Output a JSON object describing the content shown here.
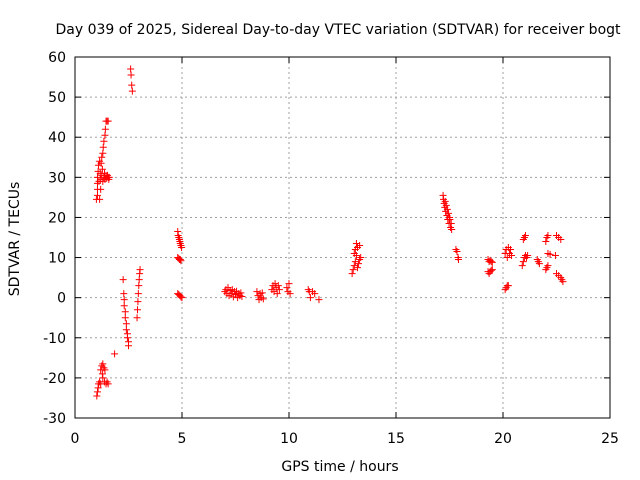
{
  "chart_data": {
    "type": "scatter",
    "title": "Day 039 of 2025, Sidereal Day-to-day VTEC variation (SDTVAR) for receiver bogt",
    "xlabel": "GPS time / hours",
    "ylabel": "SDTVAR / TECUs",
    "xlim": [
      0,
      25
    ],
    "ylim": [
      -30,
      60
    ],
    "xticks": [
      "0",
      "5",
      "10",
      "15",
      "20",
      "25"
    ],
    "yticks": [
      "-30",
      "-20",
      "-10",
      "0",
      "10",
      "20",
      "30",
      "40",
      "50",
      "60"
    ],
    "grid": true,
    "marker": "+",
    "series": [
      {
        "name": "SDTVAR",
        "color": "#ff0000",
        "points": [
          [
            1.0,
            24.5
          ],
          [
            1.05,
            25.5
          ],
          [
            1.05,
            27
          ],
          [
            1.05,
            28.5
          ],
          [
            1.05,
            30
          ],
          [
            1.08,
            31.5
          ],
          [
            1.1,
            33
          ],
          [
            1.12,
            29
          ],
          [
            1.15,
            24.5
          ],
          [
            1.15,
            34
          ],
          [
            1.18,
            31
          ],
          [
            1.2,
            27
          ],
          [
            1.2,
            29.5
          ],
          [
            1.22,
            33.5
          ],
          [
            1.25,
            35
          ],
          [
            1.25,
            30.5
          ],
          [
            1.28,
            32
          ],
          [
            1.3,
            36
          ],
          [
            1.3,
            29
          ],
          [
            1.32,
            37.5
          ],
          [
            1.35,
            30
          ],
          [
            1.35,
            39
          ],
          [
            1.38,
            31
          ],
          [
            1.4,
            40.5
          ],
          [
            1.4,
            29.5
          ],
          [
            1.42,
            42
          ],
          [
            1.45,
            30.5
          ],
          [
            1.45,
            44
          ],
          [
            1.48,
            29.8
          ],
          [
            1.5,
            44
          ],
          [
            1.52,
            30.5
          ],
          [
            1.55,
            30
          ],
          [
            1.55,
            44
          ],
          [
            1.58,
            29.5
          ],
          [
            1.6,
            30
          ],
          [
            1.02,
            -24.5
          ],
          [
            1.05,
            -23.5
          ],
          [
            1.08,
            -22.5
          ],
          [
            1.1,
            -21.5
          ],
          [
            1.15,
            -21
          ],
          [
            1.2,
            -21.5
          ],
          [
            1.2,
            -18
          ],
          [
            1.25,
            -17
          ],
          [
            1.28,
            -19
          ],
          [
            1.3,
            -16.5
          ],
          [
            1.3,
            -20
          ],
          [
            1.35,
            -17.5
          ],
          [
            1.38,
            -21
          ],
          [
            1.4,
            -18
          ],
          [
            1.45,
            -21.5
          ],
          [
            1.5,
            -21
          ],
          [
            1.55,
            -21.5
          ],
          [
            1.85,
            -14
          ],
          [
            2.6,
            57
          ],
          [
            2.62,
            55.5
          ],
          [
            2.65,
            53
          ],
          [
            2.68,
            51.5
          ],
          [
            2.25,
            4.5
          ],
          [
            2.28,
            1
          ],
          [
            2.3,
            -0.5
          ],
          [
            2.3,
            -2
          ],
          [
            2.35,
            -3.5
          ],
          [
            2.35,
            -5
          ],
          [
            2.4,
            -6.5
          ],
          [
            2.4,
            -8
          ],
          [
            2.45,
            -9
          ],
          [
            2.45,
            -10
          ],
          [
            2.5,
            -11
          ],
          [
            2.5,
            -12
          ],
          [
            2.9,
            -5
          ],
          [
            2.92,
            -3
          ],
          [
            2.94,
            -1
          ],
          [
            2.96,
            1
          ],
          [
            2.98,
            3
          ],
          [
            3.0,
            4.5
          ],
          [
            3.02,
            6
          ],
          [
            3.04,
            7
          ],
          [
            4.8,
            16.5
          ],
          [
            4.82,
            15.5
          ],
          [
            4.85,
            15
          ],
          [
            4.88,
            14.5
          ],
          [
            4.9,
            14
          ],
          [
            4.92,
            13.5
          ],
          [
            4.95,
            13
          ],
          [
            4.98,
            12.5
          ],
          [
            4.8,
            10
          ],
          [
            4.85,
            9.8
          ],
          [
            4.88,
            9.5
          ],
          [
            4.92,
            9.5
          ],
          [
            4.95,
            9.2
          ],
          [
            4.8,
            1
          ],
          [
            4.85,
            0.8
          ],
          [
            4.9,
            0.5
          ],
          [
            4.95,
            0.2
          ],
          [
            5.0,
            0
          ],
          [
            7.0,
            1.5
          ],
          [
            7.05,
            2
          ],
          [
            7.1,
            1
          ],
          [
            7.15,
            2.5
          ],
          [
            7.2,
            0.5
          ],
          [
            7.25,
            1.8
          ],
          [
            7.3,
            1
          ],
          [
            7.35,
            2
          ],
          [
            7.4,
            0.2
          ],
          [
            7.45,
            1.5
          ],
          [
            7.5,
            0.8
          ],
          [
            7.55,
            1.6
          ],
          [
            7.6,
            0
          ],
          [
            7.65,
            1
          ],
          [
            7.7,
            0.5
          ],
          [
            7.75,
            1.2
          ],
          [
            7.8,
            0.3
          ],
          [
            8.5,
            1.5
          ],
          [
            8.55,
            0.5
          ],
          [
            8.6,
            -0.5
          ],
          [
            8.65,
            1
          ],
          [
            8.7,
            0
          ],
          [
            8.75,
            1.2
          ],
          [
            8.8,
            -0.3
          ],
          [
            9.2,
            2
          ],
          [
            9.25,
            3
          ],
          [
            9.3,
            1.5
          ],
          [
            9.35,
            3.5
          ],
          [
            9.4,
            2.5
          ],
          [
            9.45,
            1
          ],
          [
            9.5,
            3
          ],
          [
            9.55,
            2
          ],
          [
            9.9,
            2.5
          ],
          [
            9.95,
            1.5
          ],
          [
            10.0,
            3.5
          ],
          [
            10.05,
            1
          ],
          [
            10.9,
            2
          ],
          [
            10.95,
            1.5
          ],
          [
            11.0,
            0
          ],
          [
            11.1,
            1.5
          ],
          [
            11.2,
            1
          ],
          [
            11.4,
            -0.5
          ],
          [
            12.95,
            6
          ],
          [
            13.0,
            7
          ],
          [
            13.05,
            8
          ],
          [
            13.05,
            11
          ],
          [
            13.1,
            9
          ],
          [
            13.1,
            12
          ],
          [
            13.15,
            10.5
          ],
          [
            13.15,
            13.5
          ],
          [
            13.2,
            7.5
          ],
          [
            13.2,
            12.5
          ],
          [
            13.25,
            8.5
          ],
          [
            13.3,
            9.5
          ],
          [
            13.3,
            13
          ],
          [
            13.35,
            10
          ],
          [
            17.2,
            25.5
          ],
          [
            17.22,
            24.5
          ],
          [
            17.25,
            23.5
          ],
          [
            17.28,
            22.5
          ],
          [
            17.3,
            24
          ],
          [
            17.32,
            21.5
          ],
          [
            17.35,
            23
          ],
          [
            17.38,
            20.5
          ],
          [
            17.4,
            22
          ],
          [
            17.42,
            19.5
          ],
          [
            17.45,
            21
          ],
          [
            17.48,
            18.5
          ],
          [
            17.5,
            20
          ],
          [
            17.52,
            19.5
          ],
          [
            17.55,
            17.5
          ],
          [
            17.58,
            18.5
          ],
          [
            17.6,
            17
          ],
          [
            17.8,
            12
          ],
          [
            17.85,
            11.5
          ],
          [
            17.9,
            10
          ],
          [
            17.92,
            9.5
          ],
          [
            19.3,
            9.5
          ],
          [
            19.35,
            9
          ],
          [
            19.4,
            9.3
          ],
          [
            19.45,
            9
          ],
          [
            19.5,
            8.8
          ],
          [
            19.3,
            6.5
          ],
          [
            19.35,
            6
          ],
          [
            19.4,
            6.5
          ],
          [
            19.45,
            6.8
          ],
          [
            19.5,
            7
          ],
          [
            20.1,
            11
          ],
          [
            20.15,
            12
          ],
          [
            20.2,
            10
          ],
          [
            20.25,
            12.5
          ],
          [
            20.3,
            11
          ],
          [
            20.35,
            12
          ],
          [
            20.4,
            10.5
          ],
          [
            20.1,
            2
          ],
          [
            20.15,
            2.5
          ],
          [
            20.2,
            3
          ],
          [
            20.25,
            3
          ],
          [
            20.95,
            14.5
          ],
          [
            21.0,
            15
          ],
          [
            21.05,
            15.5
          ],
          [
            20.9,
            8
          ],
          [
            20.95,
            9
          ],
          [
            21.0,
            10
          ],
          [
            21.05,
            10.5
          ],
          [
            21.1,
            10
          ],
          [
            21.15,
            10.5
          ],
          [
            21.6,
            9.5
          ],
          [
            21.65,
            9
          ],
          [
            21.7,
            8.5
          ],
          [
            22.0,
            14
          ],
          [
            22.05,
            15
          ],
          [
            22.1,
            15.5
          ],
          [
            22.1,
            11
          ],
          [
            22.2,
            10.8
          ],
          [
            22.45,
            10.5
          ],
          [
            22.0,
            7
          ],
          [
            22.05,
            7.5
          ],
          [
            22.1,
            8
          ],
          [
            22.5,
            15.5
          ],
          [
            22.6,
            15
          ],
          [
            22.7,
            14.5
          ],
          [
            22.5,
            6
          ],
          [
            22.6,
            5.5
          ],
          [
            22.7,
            5
          ],
          [
            22.75,
            4.5
          ],
          [
            22.8,
            4
          ]
        ]
      }
    ]
  }
}
